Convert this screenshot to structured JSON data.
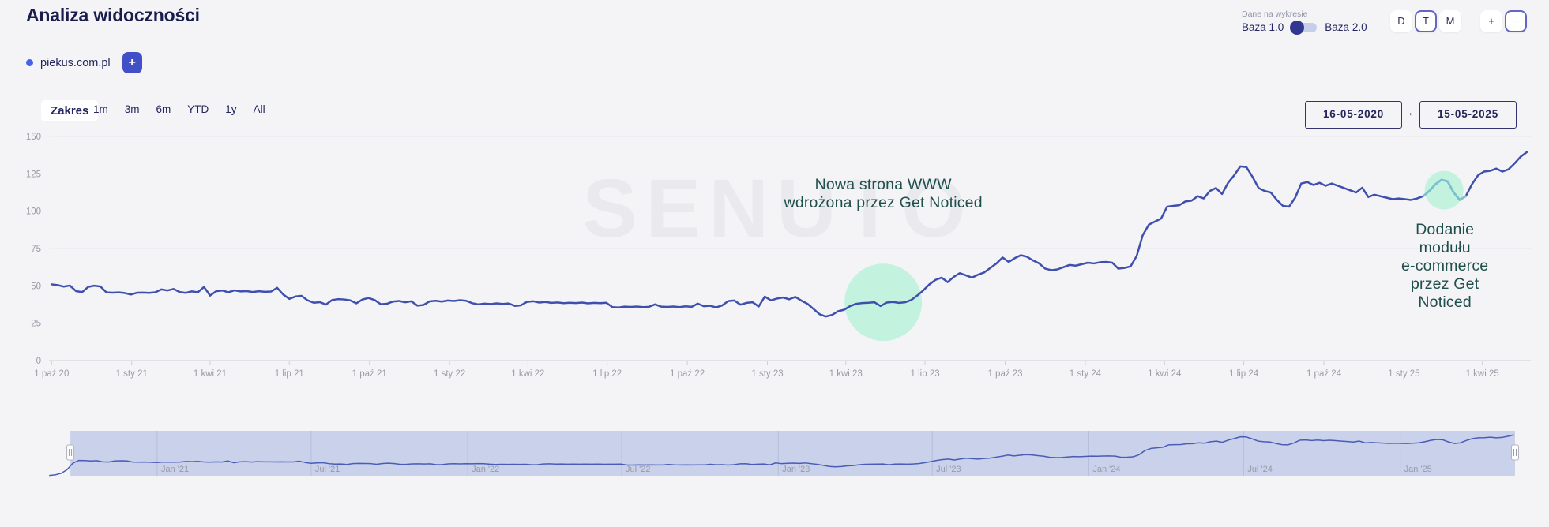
{
  "header": {
    "title": "Analiza widoczności",
    "domain": "piekus.com.pl",
    "add_button_label": "+"
  },
  "controls": {
    "data_on_chart_label": "Dane na wykresie",
    "toggle_left_label": "Baza 1.0",
    "toggle_right_label": "Baza 2.0",
    "toggle_state": "Baza 1.0",
    "granularity_buttons": [
      {
        "label": "D",
        "selected": false
      },
      {
        "label": "T",
        "selected": true
      },
      {
        "label": "M",
        "selected": false
      }
    ],
    "zoom_buttons": [
      {
        "label": "+",
        "selected": false
      },
      {
        "label": "−",
        "selected": true
      }
    ]
  },
  "range": {
    "label": "Zakres",
    "options": [
      "1m",
      "3m",
      "6m",
      "YTD",
      "1y",
      "All"
    ],
    "date_from": "16-05-2020",
    "date_to": "15-05-2025",
    "arrow": "→"
  },
  "watermark": "SENUTO",
  "chart_data": {
    "type": "line",
    "title": "Analiza widoczności - piekus.com.pl",
    "ylabel": "",
    "ylim": [
      0,
      150
    ],
    "yticks": [
      0,
      25,
      50,
      75,
      100,
      125,
      150
    ],
    "x_tick_labels": [
      "1 paź 20",
      "1 sty 21",
      "1 kwi 21",
      "1 lip 21",
      "1 paź 21",
      "1 sty 22",
      "1 kwi 22",
      "1 lip 22",
      "1 paź 22",
      "1 sty 23",
      "1 kwi 23",
      "1 lip 23",
      "1 paź 23",
      "1 sty 24",
      "1 kwi 24",
      "1 lip 24",
      "1 paź 24",
      "1 sty 25",
      "1 kwi 25"
    ],
    "grid": "horizontal-only",
    "series": [
      {
        "name": "piekus.com.pl",
        "color": "#3e4fae",
        "start_date": "2020-10-01",
        "interval_days": 7,
        "values": [
          51,
          50.5,
          49.5,
          50.2,
          46.5,
          45.8,
          49.3,
          50.1,
          49.6,
          45.6,
          45.4,
          45.6,
          45.2,
          44.2,
          45.4,
          45.5,
          45.3,
          45.7,
          47.6,
          46.9,
          47.9,
          45.9,
          45.3,
          46.3,
          45.7,
          49.3,
          43.5,
          46.4,
          46.9,
          45.7,
          47.0,
          46.3,
          46.5,
          45.9,
          46.4,
          46.0,
          46.2,
          48.7,
          44.2,
          41.3,
          42.9,
          43.3,
          40.3,
          38.7,
          39.1,
          37.5,
          40.5,
          41.1,
          40.9,
          40.3,
          38.3,
          40.9,
          41.9,
          40.5,
          37.7,
          38.0,
          39.5,
          39.9,
          39.0,
          39.7,
          36.8,
          37.2,
          39.6,
          40.0,
          39.5,
          40.2,
          39.9,
          40.4,
          40.0,
          38.4,
          37.6,
          38.1,
          37.8,
          38.3,
          37.9,
          38.2,
          36.6,
          37.0,
          39.3,
          39.7,
          38.8,
          39.2,
          38.6,
          38.9,
          38.4,
          38.7,
          38.5,
          38.8,
          38.3,
          38.6,
          38.4,
          38.7,
          35.8,
          35.5,
          36.1,
          35.9,
          36.2,
          35.8,
          36.0,
          37.6,
          36.1,
          35.9,
          36.2,
          35.8,
          36.3,
          36.0,
          38.1,
          36.4,
          36.7,
          35.6,
          36.9,
          39.8,
          40.2,
          37.4,
          38.6,
          39.0,
          36.2,
          42.8,
          40.3,
          41.5,
          42.2,
          41.0,
          42.6,
          40.1,
          38.0,
          34.5,
          31.0,
          29.5,
          30.5,
          33.0,
          34.0,
          36.5,
          38.0,
          38.5,
          38.7,
          39.0,
          36.5,
          38.8,
          39.2,
          38.6,
          39.0,
          40.5,
          43.5,
          47.0,
          51.0,
          54.0,
          55.5,
          52.5,
          56.0,
          58.5,
          57.0,
          55.5,
          57.5,
          59.0,
          62.0,
          65.0,
          69.0,
          66.0,
          68.5,
          70.5,
          69.5,
          67.0,
          65.0,
          61.5,
          60.5,
          61.0,
          62.5,
          64.0,
          63.5,
          64.5,
          65.5,
          65.0,
          65.8,
          66.0,
          65.5,
          61.5,
          62.0,
          63.0,
          70.0,
          84.0,
          91.0,
          93.0,
          95.0,
          103.0,
          103.5,
          104.0,
          106.5,
          107.0,
          110.0,
          108.5,
          113.5,
          115.5,
          111.5,
          119.0,
          124.0,
          130.0,
          129.5,
          123.0,
          115.5,
          113.5,
          112.5,
          107.5,
          103.5,
          103.0,
          109.0,
          118.5,
          119.5,
          117.5,
          119.0,
          117.0,
          118.5,
          117.0,
          115.5,
          114.0,
          112.5,
          115.7,
          109.5,
          111.0,
          110.0,
          109.0,
          108.0,
          108.5,
          108.0,
          107.5,
          108.5,
          110.0,
          113.5,
          118.0,
          121.0,
          120.0,
          112.5,
          107.5,
          110.0,
          118.0,
          124.0,
          126.5,
          127.0,
          128.5,
          126.5,
          128.0,
          132.0,
          136.5,
          139.5
        ]
      }
    ],
    "annotations": [
      {
        "text": "Nowa strona WWW\nwdrożona przez Get Noticed",
        "date": "2023-05-14",
        "value_at_date": 39,
        "highlight_circle_color": "#b7f2d8"
      },
      {
        "text": "Dodanie modułu\ne-commerce\nprzez Get Noticed",
        "date": "2025-02-16",
        "value_at_date": 118,
        "highlight_circle_color": "#b7f2d8"
      }
    ],
    "navigator": {
      "labels": [
        "Jan '21",
        "Jul '21",
        "Jan '22",
        "Jul '22",
        "Jan '23",
        "Jul '23",
        "Jan '24",
        "Jul '24",
        "Jan '25"
      ],
      "pre_selection_values": [
        1,
        3,
        8,
        20,
        42
      ],
      "pre_selection_start_date": "2020-08-27",
      "selection_start_date": "2020-09-21",
      "selection_end_date": "2025-05-15"
    }
  }
}
